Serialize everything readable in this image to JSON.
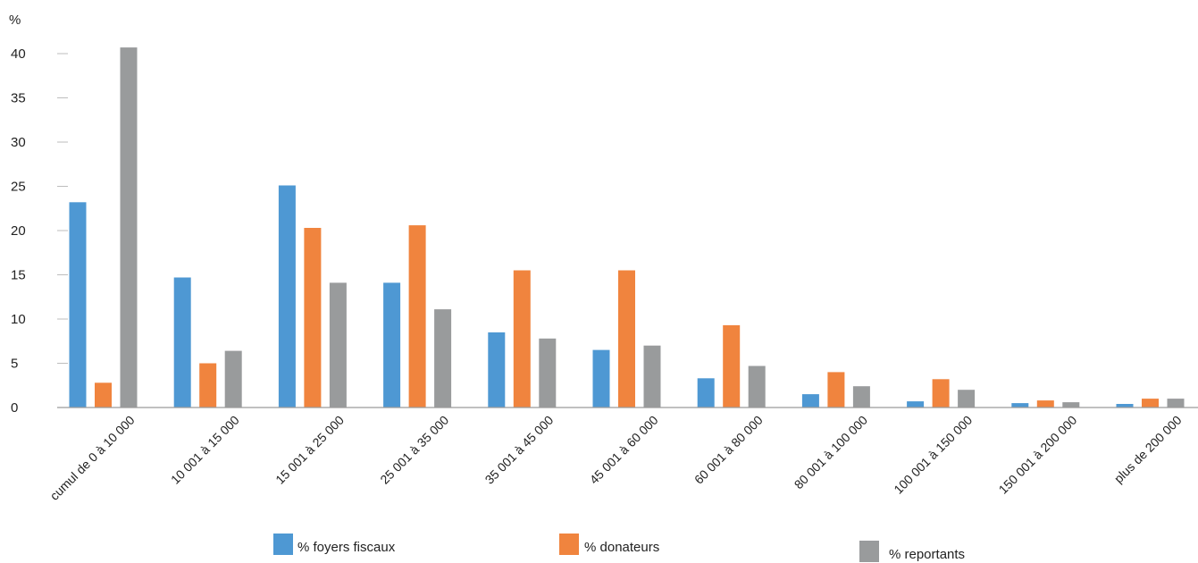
{
  "chart_data": {
    "type": "bar",
    "unit_label": "%",
    "ylim": [
      0,
      40
    ],
    "yticks": [
      0,
      5,
      10,
      15,
      20,
      25,
      30,
      35,
      40
    ],
    "grid": false,
    "legend_position": "bottom",
    "categories": [
      "cumul de 0 à 10 000",
      "10 001 à 15 000",
      "15 001 à 25 000",
      "25 001 à 35 000",
      "35 001 à 45 000",
      "45 001 à 60 000",
      "60 001 à 80 000",
      "80 001 à 100 000",
      "100 001 à 150 000",
      "150 001 à 200 000",
      "plus de 200 000"
    ],
    "series": [
      {
        "name": "% foyers fiscaux",
        "color": "#4e98d3",
        "values": [
          23.2,
          14.7,
          25.1,
          14.1,
          8.5,
          6.5,
          3.3,
          1.5,
          0.7,
          0.5,
          0.4
        ]
      },
      {
        "name": "% donateurs",
        "color": "#f0843e",
        "values": [
          2.8,
          5.0,
          20.3,
          20.6,
          15.5,
          15.5,
          9.3,
          4.0,
          3.2,
          0.8,
          1.0
        ]
      },
      {
        "name": "% reportants",
        "color": "#999b9c",
        "values": [
          40.7,
          6.4,
          14.1,
          11.1,
          7.8,
          7.0,
          4.7,
          2.4,
          2.0,
          0.6,
          1.0
        ]
      }
    ]
  }
}
